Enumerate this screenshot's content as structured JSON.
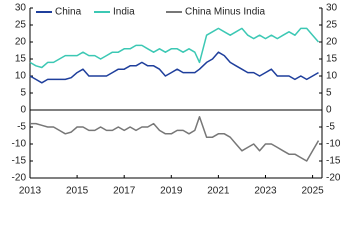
{
  "chart_data": {
    "type": "line",
    "x": [
      2013.0,
      2013.25,
      2013.5,
      2013.75,
      2014.0,
      2014.25,
      2014.5,
      2014.75,
      2015.0,
      2015.25,
      2015.5,
      2015.75,
      2016.0,
      2016.25,
      2016.5,
      2016.75,
      2017.0,
      2017.25,
      2017.5,
      2017.75,
      2018.0,
      2018.25,
      2018.5,
      2018.75,
      2019.0,
      2019.25,
      2019.5,
      2019.75,
      2020.0,
      2020.2,
      2020.5,
      2020.75,
      2021.0,
      2021.25,
      2021.5,
      2021.75,
      2022.0,
      2022.25,
      2022.5,
      2022.75,
      2023.0,
      2023.25,
      2023.5,
      2023.75,
      2024.0,
      2024.25,
      2024.5,
      2024.75,
      2025.0,
      2025.25
    ],
    "series": [
      {
        "name": "China",
        "color": "#1f3f9c",
        "values": [
          10,
          9,
          8,
          9,
          9,
          9,
          9,
          9.5,
          11,
          12,
          10,
          10,
          10,
          10,
          11,
          12,
          12,
          13,
          13,
          14,
          13,
          13,
          12,
          10,
          11,
          12,
          11,
          11,
          11,
          12,
          14,
          15,
          17,
          16,
          14,
          13,
          12,
          11,
          11,
          10,
          11,
          12,
          10,
          10,
          10,
          9,
          10,
          9,
          10,
          11
        ]
      },
      {
        "name": "India",
        "color": "#3cc8b4",
        "values": [
          14,
          13,
          12.5,
          14,
          14,
          15,
          16,
          16,
          16,
          17,
          16,
          16,
          15,
          16,
          17,
          17,
          18,
          18,
          19,
          19,
          18,
          17,
          18,
          17,
          18,
          18,
          17,
          18,
          17,
          14,
          22,
          23,
          24,
          23,
          22,
          23,
          24,
          22,
          21,
          22,
          21,
          22,
          21,
          22,
          23,
          22,
          24,
          24,
          22,
          20
        ]
      },
      {
        "name": "China Minus India",
        "color": "#777777",
        "values": [
          -4,
          -4,
          -4.5,
          -5,
          -5,
          -6,
          -7,
          -6.5,
          -5,
          -5,
          -6,
          -6,
          -5,
          -6,
          -6,
          -5,
          -6,
          -5,
          -6,
          -5,
          -5,
          -4,
          -6,
          -7,
          -7,
          -6,
          -6,
          -7,
          -6,
          -2,
          -8,
          -8,
          -7,
          -7,
          -8,
          -10,
          -12,
          -11,
          -10,
          -12,
          -10,
          -10,
          -11,
          -12,
          -13,
          -13,
          -14,
          -15,
          -12,
          -9
        ]
      }
    ],
    "xlim": [
      2013,
      2025.4
    ],
    "xticks": [
      2013,
      2015,
      2017,
      2019,
      2021,
      2023,
      2025
    ],
    "ylim": [
      -20,
      30
    ],
    "yticks": [
      -20,
      -15,
      -10,
      -5,
      0,
      5,
      10,
      15,
      20,
      25,
      30
    ],
    "y2lim": [
      -20,
      30
    ],
    "y2ticks": [
      -20,
      -15,
      -10,
      -5,
      0,
      5,
      10,
      15,
      20,
      25,
      30
    ],
    "grid": false
  }
}
